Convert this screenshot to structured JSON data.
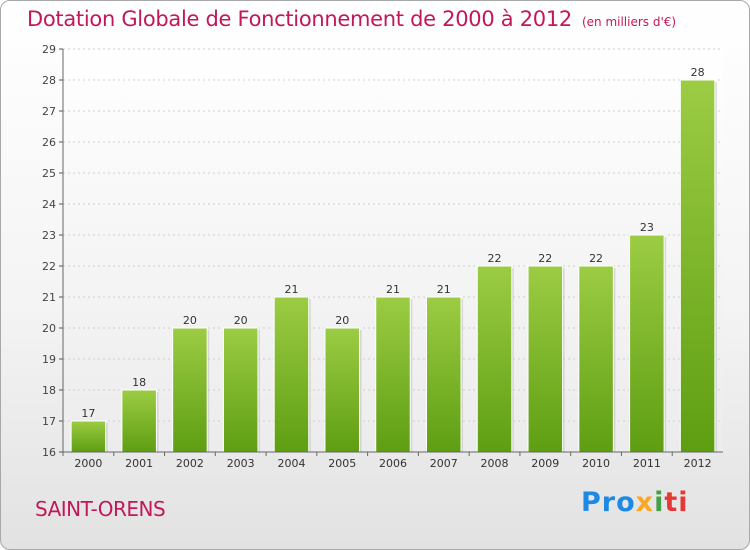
{
  "header": {
    "title": "Dotation Globale de Fonctionnement de 2000 à 2012",
    "unit": "(en milliers d'€)"
  },
  "footer": {
    "city": "SAINT-ORENS",
    "logo": [
      "Pro",
      "x",
      "i",
      "ti"
    ]
  },
  "colors": {
    "accent": "#c2185b",
    "bar_top": "#9ccc44",
    "bar_bottom": "#5e9e12"
  },
  "chart_data": {
    "type": "bar",
    "categories": [
      "2000",
      "2001",
      "2002",
      "2003",
      "2004",
      "2005",
      "2006",
      "2007",
      "2008",
      "2009",
      "2010",
      "2011",
      "2012"
    ],
    "values": [
      17,
      18,
      20,
      20,
      21,
      20,
      21,
      21,
      22,
      22,
      22,
      23,
      28
    ],
    "title": "Dotation Globale de Fonctionnement de 2000 à 2012",
    "subtitle": "(en milliers d'€)",
    "xlabel": "",
    "ylabel": "",
    "ylim": [
      16,
      29
    ],
    "yticks": [
      16,
      17,
      18,
      19,
      20,
      21,
      22,
      23,
      24,
      25,
      26,
      27,
      28,
      29
    ],
    "grid": true,
    "data_labels": true
  }
}
